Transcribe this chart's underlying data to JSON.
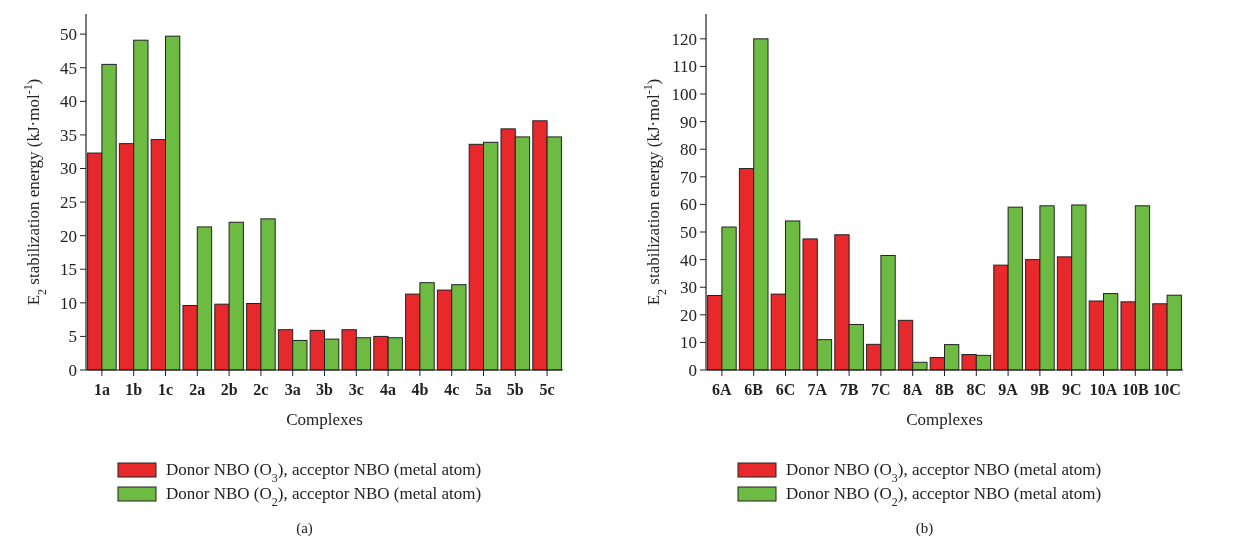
{
  "chart_data": [
    {
      "type": "bar",
      "categories": [
        "1a",
        "1b",
        "1c",
        "2a",
        "2b",
        "2c",
        "3a",
        "3b",
        "3c",
        "4a",
        "4b",
        "4c",
        "5a",
        "5b",
        "5c"
      ],
      "xlabel": "Complexes",
      "ylabel": "E$_{2}$ stabilization energy (kJ·mol$^{-1}$)",
      "ylim": [
        0,
        53
      ],
      "yticks": [
        0,
        5,
        10,
        15,
        20,
        25,
        30,
        35,
        40,
        45,
        50
      ],
      "legend": "bottom",
      "annotations": [
        "(a)"
      ],
      "series": [
        {
          "name": "Donor NBO (O$_{3}$), acceptor NBO (metal atom)",
          "color": "#e8292b",
          "values": [
            32.3,
            33.7,
            34.3,
            9.6,
            9.8,
            9.9,
            6.0,
            5.9,
            6.0,
            5.0,
            11.3,
            11.9,
            33.6,
            35.9,
            37.1
          ]
        },
        {
          "name": "Donor NBO (O$_{2}$), acceptor NBO (metal atom)",
          "color": "#6dbb42",
          "values": [
            45.5,
            49.1,
            49.7,
            21.3,
            22.0,
            22.5,
            4.4,
            4.6,
            4.8,
            4.8,
            13.0,
            12.7,
            33.9,
            34.7,
            34.7
          ]
        }
      ]
    },
    {
      "type": "bar",
      "categories": [
        "6A",
        "6B",
        "6C",
        "7A",
        "7B",
        "7C",
        "8A",
        "8B",
        "8C",
        "9A",
        "9B",
        "9C",
        "10A",
        "10B",
        "10C"
      ],
      "xlabel": "Complexes",
      "ylabel": "E$_{2}$ stabilization energy (kJ·mol$^{-1}$)",
      "ylim": [
        0,
        129
      ],
      "yticks": [
        0,
        10,
        20,
        30,
        40,
        50,
        60,
        70,
        80,
        90,
        100,
        110,
        120
      ],
      "legend": "bottom",
      "annotations": [
        "(b)"
      ],
      "series": [
        {
          "name": "Donor NBO (O$_{3}$), acceptor NBO (metal atom)",
          "color": "#e8292b",
          "values": [
            27,
            73,
            27.5,
            47.5,
            49,
            9.3,
            18,
            4.5,
            5.6,
            38,
            40,
            41,
            25,
            24.7,
            24
          ]
        },
        {
          "name": "Donor NBO (O$_{2}$), acceptor NBO (metal atom)",
          "color": "#6dbb42",
          "values": [
            51.8,
            120,
            54,
            11,
            16.5,
            41.5,
            2.8,
            9.2,
            5.3,
            59,
            59.5,
            59.8,
            27.7,
            59.5,
            27.1
          ]
        }
      ]
    }
  ]
}
